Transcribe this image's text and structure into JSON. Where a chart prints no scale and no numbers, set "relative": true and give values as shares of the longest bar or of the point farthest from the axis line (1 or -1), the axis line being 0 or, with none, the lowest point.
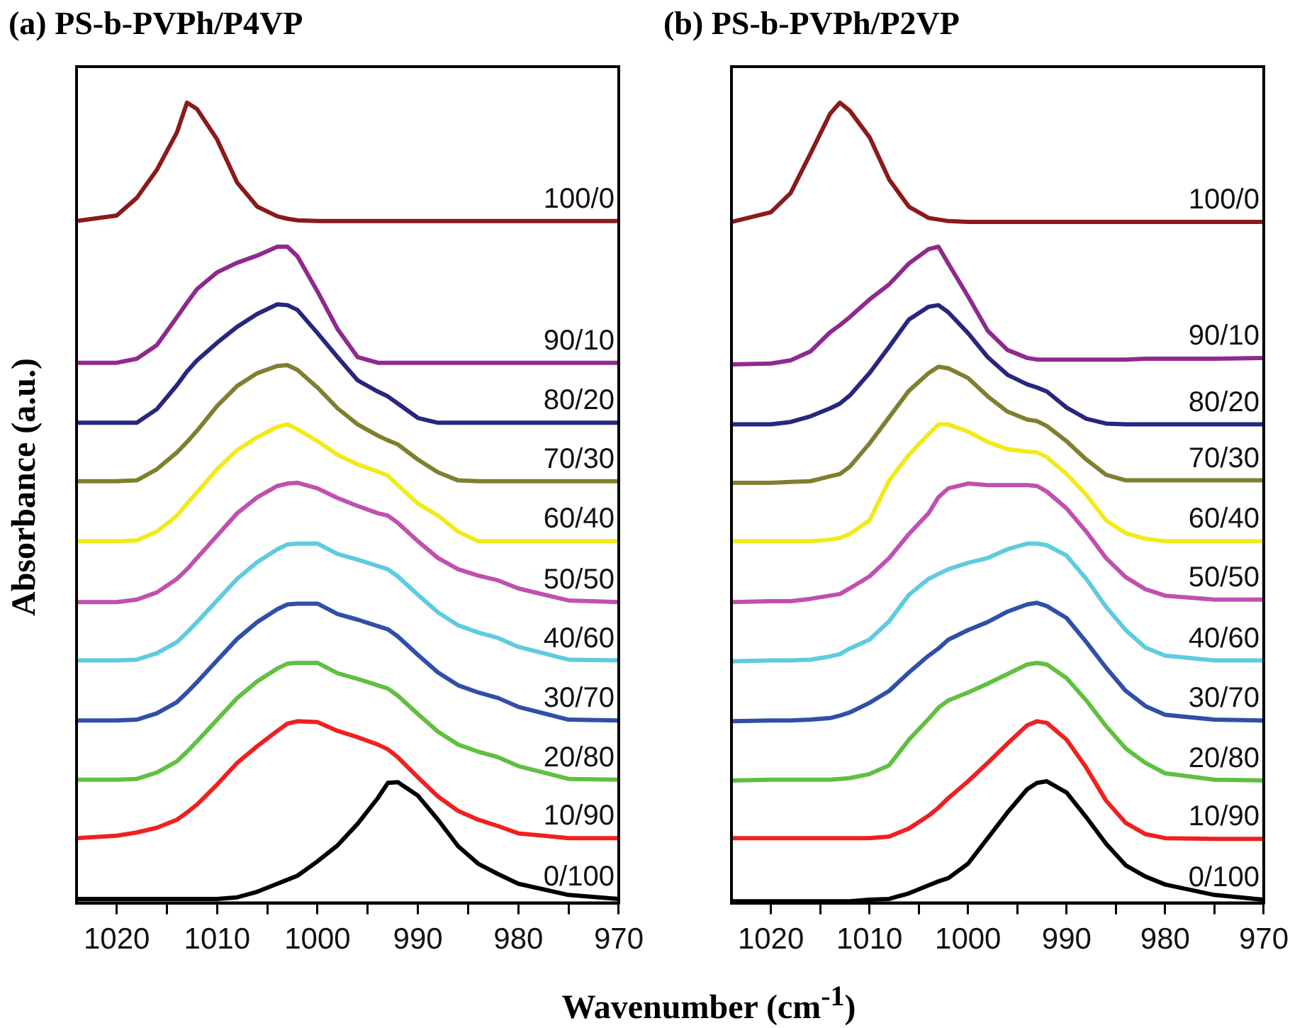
{
  "chart_data": [
    {
      "type": "line",
      "title": "(a) PS-b-PVPh/P4VP",
      "xlabel": "Wavenumber (cm$^{-1}$)",
      "ylabel": "Absorbance (a.u.)",
      "relative": true,
      "legend": false,
      "marker": "none",
      "line_style": "solid",
      "xlim": [
        1024,
        970
      ],
      "xticks": [
        1020,
        {
          "value": 1015,
          "label": null
        },
        1010,
        {
          "value": 1005,
          "label": null
        },
        1000,
        {
          "value": 995,
          "label": null
        },
        990,
        {
          "value": 985,
          "label": null
        },
        980,
        {
          "value": 975,
          "label": null
        },
        970
      ],
      "x": [
        1024,
        1020,
        1018,
        1016,
        1014,
        1013,
        1012,
        1010,
        1008,
        1006,
        1004,
        1003,
        1002,
        1000,
        998,
        996,
        994,
        993,
        992,
        990,
        988,
        986,
        984,
        982,
        980,
        975,
        970
      ],
      "series": [
        {
          "name": "100/0",
          "color": "#8b1a1a",
          "values": [
            0.852,
            0.859,
            0.881,
            0.916,
            0.963,
            1.0,
            0.992,
            0.954,
            0.9,
            0.87,
            0.858,
            0.855,
            0.853,
            0.852,
            0.852,
            0.852,
            0.852,
            0.852,
            0.852,
            0.852,
            0.852,
            0.852,
            0.852,
            0.852,
            0.852,
            0.852,
            0.852
          ]
        },
        {
          "name": "90/10",
          "color": "#8e2a8e",
          "values": [
            0.675,
            0.675,
            0.68,
            0.697,
            0.732,
            0.75,
            0.767,
            0.788,
            0.8,
            0.809,
            0.82,
            0.82,
            0.808,
            0.764,
            0.717,
            0.682,
            0.675,
            0.675,
            0.675,
            0.675,
            0.675,
            0.675,
            0.675,
            0.675,
            0.675,
            0.675,
            0.675
          ]
        },
        {
          "name": "80/20",
          "color": "#27277f",
          "values": [
            0.6,
            0.6,
            0.6,
            0.617,
            0.647,
            0.664,
            0.678,
            0.7,
            0.72,
            0.736,
            0.748,
            0.747,
            0.741,
            0.712,
            0.682,
            0.653,
            0.639,
            0.633,
            0.624,
            0.606,
            0.6,
            0.6,
            0.6,
            0.6,
            0.6,
            0.6,
            0.6
          ]
        },
        {
          "name": "70/30",
          "color": "#7f7f30",
          "values": [
            0.527,
            0.527,
            0.528,
            0.542,
            0.563,
            0.576,
            0.59,
            0.621,
            0.646,
            0.662,
            0.671,
            0.672,
            0.666,
            0.644,
            0.618,
            0.598,
            0.584,
            0.578,
            0.573,
            0.554,
            0.538,
            0.528,
            0.527,
            0.527,
            0.527,
            0.527,
            0.527
          ]
        },
        {
          "name": "60/40",
          "color": "#f2ea1a",
          "values": [
            0.452,
            0.452,
            0.453,
            0.464,
            0.484,
            0.499,
            0.513,
            0.542,
            0.566,
            0.582,
            0.595,
            0.598,
            0.592,
            0.577,
            0.56,
            0.548,
            0.539,
            0.534,
            0.522,
            0.499,
            0.484,
            0.464,
            0.452,
            0.452,
            0.452,
            0.452,
            0.452
          ]
        },
        {
          "name": "50/50",
          "color": "#c050b0",
          "values": [
            0.376,
            0.376,
            0.379,
            0.388,
            0.405,
            0.417,
            0.431,
            0.459,
            0.487,
            0.507,
            0.521,
            0.524,
            0.525,
            0.518,
            0.506,
            0.496,
            0.487,
            0.484,
            0.475,
            0.452,
            0.431,
            0.417,
            0.409,
            0.403,
            0.393,
            0.378,
            0.376
          ]
        },
        {
          "name": "40/60",
          "color": "#5ecbe0",
          "values": [
            0.303,
            0.303,
            0.304,
            0.312,
            0.326,
            0.338,
            0.351,
            0.378,
            0.405,
            0.426,
            0.442,
            0.448,
            0.449,
            0.449,
            0.436,
            0.429,
            0.421,
            0.417,
            0.408,
            0.385,
            0.363,
            0.347,
            0.338,
            0.331,
            0.32,
            0.304,
            0.303
          ]
        },
        {
          "name": "30/70",
          "color": "#2f4fa8",
          "values": [
            0.228,
            0.228,
            0.229,
            0.237,
            0.251,
            0.263,
            0.276,
            0.303,
            0.33,
            0.351,
            0.367,
            0.373,
            0.374,
            0.374,
            0.361,
            0.354,
            0.346,
            0.342,
            0.333,
            0.31,
            0.288,
            0.272,
            0.263,
            0.256,
            0.245,
            0.229,
            0.228
          ]
        },
        {
          "name": "20/80",
          "color": "#60c040",
          "values": [
            0.154,
            0.154,
            0.155,
            0.163,
            0.177,
            0.189,
            0.202,
            0.229,
            0.256,
            0.277,
            0.293,
            0.299,
            0.3,
            0.3,
            0.287,
            0.28,
            0.272,
            0.268,
            0.259,
            0.236,
            0.214,
            0.198,
            0.189,
            0.182,
            0.171,
            0.155,
            0.154
          ]
        },
        {
          "name": "10/90",
          "color": "#f02020",
          "values": [
            0.081,
            0.084,
            0.088,
            0.094,
            0.104,
            0.113,
            0.123,
            0.148,
            0.175,
            0.196,
            0.215,
            0.224,
            0.227,
            0.226,
            0.215,
            0.207,
            0.198,
            0.192,
            0.182,
            0.157,
            0.133,
            0.115,
            0.104,
            0.096,
            0.087,
            0.081,
            0.081
          ]
        },
        {
          "name": "0/100",
          "color": "#000000",
          "values": [
            0.005,
            0.005,
            0.005,
            0.005,
            0.005,
            0.005,
            0.005,
            0.005,
            0.007,
            0.014,
            0.024,
            0.029,
            0.034,
            0.052,
            0.072,
            0.099,
            0.131,
            0.15,
            0.151,
            0.134,
            0.104,
            0.071,
            0.049,
            0.036,
            0.024,
            0.01,
            0.005
          ]
        }
      ]
    },
    {
      "type": "line",
      "title": "(b) PS-b-PVPh/P2VP",
      "relative": true,
      "legend": false,
      "marker": "none",
      "line_style": "solid",
      "xlim": [
        1024,
        970
      ],
      "xticks": [
        1020,
        {
          "value": 1015,
          "label": null
        },
        1010,
        {
          "value": 1005,
          "label": null
        },
        1000,
        {
          "value": 995,
          "label": null
        },
        990,
        {
          "value": 985,
          "label": null
        },
        980,
        {
          "value": 975,
          "label": null
        },
        970
      ],
      "x": [
        1024,
        1020,
        1018,
        1016,
        1014,
        1013,
        1012,
        1010,
        1008,
        1006,
        1004,
        1003,
        1002,
        1000,
        998,
        996,
        994,
        993,
        992,
        990,
        988,
        986,
        984,
        982,
        980,
        975,
        970
      ],
      "series": [
        {
          "name": "100/0",
          "color": "#8b1a1a",
          "values": [
            0.851,
            0.863,
            0.887,
            0.936,
            0.986,
            1.0,
            0.99,
            0.957,
            0.904,
            0.87,
            0.856,
            0.854,
            0.852,
            0.851,
            0.851,
            0.851,
            0.851,
            0.851,
            0.851,
            0.851,
            0.851,
            0.851,
            0.851,
            0.851,
            0.851,
            0.851,
            0.851
          ]
        },
        {
          "name": "90/10",
          "color": "#8e2a8e",
          "values": [
            0.673,
            0.674,
            0.678,
            0.689,
            0.713,
            0.722,
            0.732,
            0.754,
            0.773,
            0.799,
            0.817,
            0.82,
            0.799,
            0.758,
            0.715,
            0.691,
            0.681,
            0.679,
            0.679,
            0.679,
            0.679,
            0.679,
            0.679,
            0.68,
            0.68,
            0.68,
            0.681
          ]
        },
        {
          "name": "80/20",
          "color": "#27277f",
          "values": [
            0.598,
            0.598,
            0.601,
            0.608,
            0.618,
            0.624,
            0.634,
            0.662,
            0.695,
            0.729,
            0.745,
            0.747,
            0.738,
            0.712,
            0.682,
            0.66,
            0.648,
            0.644,
            0.639,
            0.619,
            0.605,
            0.599,
            0.598,
            0.598,
            0.598,
            0.598,
            0.598
          ]
        },
        {
          "name": "70/30",
          "color": "#7f7f30",
          "values": [
            0.525,
            0.525,
            0.526,
            0.527,
            0.533,
            0.536,
            0.545,
            0.574,
            0.607,
            0.64,
            0.662,
            0.67,
            0.668,
            0.656,
            0.633,
            0.614,
            0.604,
            0.602,
            0.596,
            0.577,
            0.554,
            0.535,
            0.528,
            0.528,
            0.528,
            0.528,
            0.528
          ]
        },
        {
          "name": "60/40",
          "color": "#f2ea1a",
          "values": [
            0.452,
            0.452,
            0.452,
            0.452,
            0.454,
            0.456,
            0.461,
            0.478,
            0.528,
            0.56,
            0.586,
            0.598,
            0.598,
            0.589,
            0.576,
            0.567,
            0.564,
            0.563,
            0.557,
            0.536,
            0.51,
            0.478,
            0.462,
            0.455,
            0.452,
            0.452,
            0.452
          ]
        },
        {
          "name": "50/50",
          "color": "#c050b0",
          "values": [
            0.376,
            0.377,
            0.377,
            0.38,
            0.384,
            0.386,
            0.393,
            0.408,
            0.431,
            0.461,
            0.487,
            0.507,
            0.518,
            0.524,
            0.522,
            0.522,
            0.522,
            0.521,
            0.514,
            0.493,
            0.464,
            0.431,
            0.407,
            0.392,
            0.384,
            0.379,
            0.379
          ]
        },
        {
          "name": "40/60",
          "color": "#5ecbe0",
          "values": [
            0.302,
            0.303,
            0.303,
            0.304,
            0.308,
            0.311,
            0.318,
            0.329,
            0.352,
            0.385,
            0.405,
            0.411,
            0.417,
            0.425,
            0.431,
            0.442,
            0.449,
            0.449,
            0.447,
            0.434,
            0.405,
            0.37,
            0.341,
            0.319,
            0.309,
            0.303,
            0.303
          ]
        },
        {
          "name": "30/70",
          "color": "#2f4fa8",
          "values": [
            0.227,
            0.228,
            0.228,
            0.229,
            0.231,
            0.234,
            0.238,
            0.25,
            0.265,
            0.288,
            0.309,
            0.318,
            0.329,
            0.341,
            0.351,
            0.364,
            0.373,
            0.375,
            0.371,
            0.356,
            0.326,
            0.294,
            0.265,
            0.246,
            0.235,
            0.229,
            0.228
          ]
        },
        {
          "name": "20/80",
          "color": "#60c040",
          "values": [
            0.153,
            0.154,
            0.154,
            0.154,
            0.154,
            0.155,
            0.156,
            0.161,
            0.172,
            0.204,
            0.23,
            0.244,
            0.253,
            0.263,
            0.274,
            0.286,
            0.298,
            0.3,
            0.298,
            0.281,
            0.253,
            0.221,
            0.193,
            0.175,
            0.162,
            0.154,
            0.153
          ]
        },
        {
          "name": "10/90",
          "color": "#f02020",
          "values": [
            0.081,
            0.081,
            0.081,
            0.081,
            0.081,
            0.081,
            0.081,
            0.081,
            0.083,
            0.093,
            0.109,
            0.119,
            0.131,
            0.152,
            0.175,
            0.199,
            0.222,
            0.227,
            0.225,
            0.204,
            0.169,
            0.128,
            0.1,
            0.086,
            0.081,
            0.08,
            0.08
          ]
        },
        {
          "name": "0/100",
          "color": "#000000",
          "values": [
            0.002,
            0.002,
            0.002,
            0.002,
            0.002,
            0.002,
            0.002,
            0.004,
            0.005,
            0.012,
            0.022,
            0.027,
            0.031,
            0.049,
            0.081,
            0.113,
            0.142,
            0.15,
            0.152,
            0.138,
            0.107,
            0.074,
            0.047,
            0.033,
            0.023,
            0.01,
            0.004
          ]
        }
      ]
    }
  ]
}
